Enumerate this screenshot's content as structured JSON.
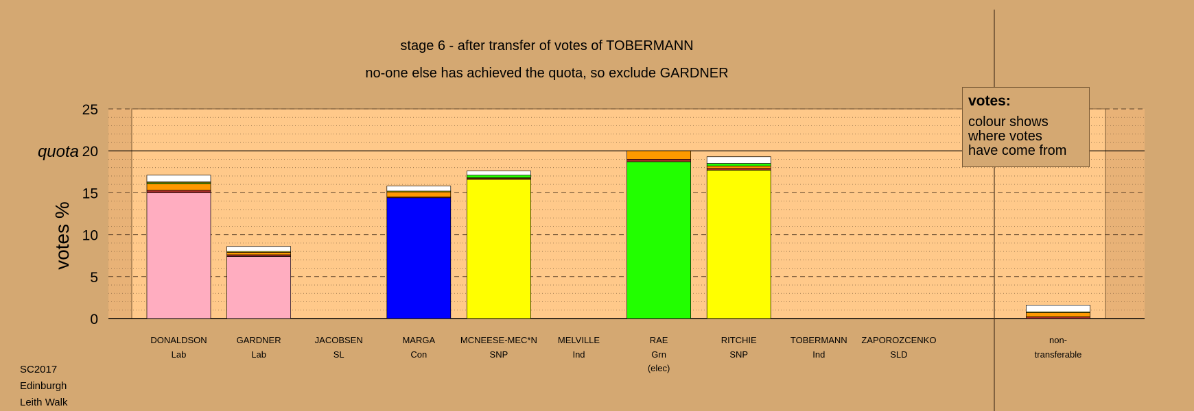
{
  "chart_data": {
    "type": "bar",
    "title": "stage 6 - after transfer of votes of TOBERMANN",
    "subtitle": "no-one else has achieved the quota, so exclude GARDNER",
    "ylabel": "votes %",
    "quota_label": "quota",
    "quota": 20,
    "ylim": [
      0,
      25
    ],
    "yticks": [
      0,
      5,
      10,
      15,
      20,
      25
    ],
    "grid": true,
    "candidates": [
      {
        "name": "DONALDSON",
        "party": "Lab",
        "note": "",
        "segments": [
          {
            "color": "#ffadc0",
            "value": 15.0
          },
          {
            "color": "#a52a2a",
            "value": 0.3
          },
          {
            "color": "#ff9900",
            "value": 0.8
          },
          {
            "color": "#22ff00",
            "value": 0.1
          },
          {
            "color": "#ffff00",
            "value": 0.1
          },
          {
            "color": "#ffffff",
            "value": 0.8
          }
        ]
      },
      {
        "name": "GARDNER",
        "party": "Lab",
        "note": "",
        "segments": [
          {
            "color": "#ffadc0",
            "value": 7.4
          },
          {
            "color": "#a52a2a",
            "value": 0.2
          },
          {
            "color": "#ff9900",
            "value": 0.3
          },
          {
            "color": "#ffff00",
            "value": 0.1
          },
          {
            "color": "#ffffff",
            "value": 0.6
          }
        ]
      },
      {
        "name": "JACOBSEN",
        "party": "SL",
        "note": "",
        "segments": []
      },
      {
        "name": "MARGA",
        "party": "Con",
        "note": "",
        "segments": [
          {
            "color": "#0000ff",
            "value": 14.4
          },
          {
            "color": "#a52a2a",
            "value": 0.1
          },
          {
            "color": "#ff9900",
            "value": 0.6
          },
          {
            "color": "#ffff00",
            "value": 0.1
          },
          {
            "color": "#ffffff",
            "value": 0.6
          }
        ]
      },
      {
        "name": "MCNEESE-MEC*N",
        "party": "SNP",
        "note": "",
        "segments": [
          {
            "color": "#ffff00",
            "value": 16.6
          },
          {
            "color": "#a52a2a",
            "value": 0.1
          },
          {
            "color": "#ff9900",
            "value": 0.1
          },
          {
            "color": "#22ff00",
            "value": 0.3
          },
          {
            "color": "#ffffff",
            "value": 0.5
          }
        ]
      },
      {
        "name": "MELVILLE",
        "party": "Ind",
        "note": "",
        "segments": []
      },
      {
        "name": "RAE",
        "party": "Grn",
        "note": "(elec)",
        "segments": [
          {
            "color": "#22ff00",
            "value": 18.7
          },
          {
            "color": "#a52a2a",
            "value": 0.3
          },
          {
            "color": "#ff9900",
            "value": 1.0
          }
        ]
      },
      {
        "name": "RITCHIE",
        "party": "SNP",
        "note": "",
        "segments": [
          {
            "color": "#ffff00",
            "value": 17.7
          },
          {
            "color": "#a52a2a",
            "value": 0.2
          },
          {
            "color": "#ff9900",
            "value": 0.3
          },
          {
            "color": "#22ff00",
            "value": 0.3
          },
          {
            "color": "#ffffff",
            "value": 0.8
          }
        ]
      },
      {
        "name": "TOBERMANN",
        "party": "Ind",
        "note": "",
        "segments": []
      },
      {
        "name": "ZAPOROZCENKO",
        "party": "SLD",
        "note": "",
        "segments": []
      }
    ],
    "non_transferable": {
      "label1": "non-",
      "label2": "transferable",
      "segments": [
        {
          "color": "#a52a2a",
          "value": 0.2
        },
        {
          "color": "#ff9900",
          "value": 0.5
        },
        {
          "color": "#ffff00",
          "value": 0.1
        },
        {
          "color": "#ffffff",
          "value": 0.8
        }
      ]
    }
  },
  "legend": {
    "title": "votes:",
    "text": "colour shows\nwhere votes\nhave come from"
  },
  "footer": [
    "SC2017",
    "Edinburgh",
    "Leith Walk"
  ],
  "colors": {
    "background": "#d4a872",
    "plot_area": "#ffc98a"
  }
}
